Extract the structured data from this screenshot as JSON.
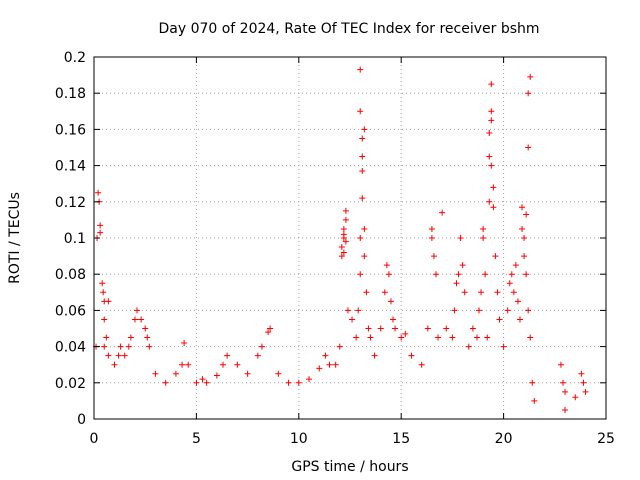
{
  "chart_data": {
    "type": "scatter",
    "title": "Day 070 of 2024, Rate Of TEC Index for receiver bshm",
    "xlabel": "GPS time / hours",
    "ylabel": "ROTI / TECUs",
    "xlim": [
      0,
      25
    ],
    "ylim": [
      0,
      0.2
    ],
    "x_ticks": [
      0,
      5,
      10,
      15,
      20,
      25
    ],
    "x_tick_labels": [
      "0",
      "5",
      "10",
      "15",
      "20",
      "25"
    ],
    "y_ticks": [
      0,
      0.02,
      0.04,
      0.06,
      0.08,
      0.1,
      0.12,
      0.14,
      0.16,
      0.18,
      0.2
    ],
    "y_tick_labels": [
      "0",
      "0.02",
      "0.04",
      "0.06",
      "0.08",
      "0.1",
      "0.12",
      "0.14",
      "0.16",
      "0.18",
      "0.2"
    ],
    "grid": true,
    "marker": "plus",
    "color": "#ff0000",
    "points": [
      [
        0.1,
        0.04
      ],
      [
        0.15,
        0.1
      ],
      [
        0.2,
        0.125
      ],
      [
        0.25,
        0.12
      ],
      [
        0.3,
        0.107
      ],
      [
        0.3,
        0.103
      ],
      [
        0.4,
        0.075
      ],
      [
        0.45,
        0.07
      ],
      [
        0.5,
        0.065
      ],
      [
        0.6,
        0.045
      ],
      [
        0.7,
        0.065
      ],
      [
        0.5,
        0.055
      ],
      [
        0.5,
        0.04
      ],
      [
        0.7,
        0.035
      ],
      [
        1.0,
        0.03
      ],
      [
        1.2,
        0.035
      ],
      [
        1.3,
        0.04
      ],
      [
        1.5,
        0.035
      ],
      [
        1.7,
        0.04
      ],
      [
        1.8,
        0.045
      ],
      [
        2.0,
        0.055
      ],
      [
        2.1,
        0.06
      ],
      [
        2.3,
        0.055
      ],
      [
        2.5,
        0.05
      ],
      [
        2.6,
        0.045
      ],
      [
        2.7,
        0.04
      ],
      [
        3.0,
        0.025
      ],
      [
        3.5,
        0.02
      ],
      [
        4.0,
        0.025
      ],
      [
        4.3,
        0.03
      ],
      [
        4.4,
        0.042
      ],
      [
        4.6,
        0.03
      ],
      [
        5.0,
        0.02
      ],
      [
        5.3,
        0.022
      ],
      [
        5.5,
        0.02
      ],
      [
        6.0,
        0.024
      ],
      [
        6.3,
        0.03
      ],
      [
        6.5,
        0.035
      ],
      [
        7.0,
        0.03
      ],
      [
        7.5,
        0.025
      ],
      [
        8.0,
        0.035
      ],
      [
        8.2,
        0.04
      ],
      [
        8.5,
        0.048
      ],
      [
        8.6,
        0.05
      ],
      [
        9.0,
        0.025
      ],
      [
        9.5,
        0.02
      ],
      [
        10.0,
        0.02
      ],
      [
        10.5,
        0.022
      ],
      [
        11.0,
        0.028
      ],
      [
        11.3,
        0.035
      ],
      [
        11.5,
        0.03
      ],
      [
        11.8,
        0.03
      ],
      [
        12.0,
        0.04
      ],
      [
        12.1,
        0.09
      ],
      [
        12.1,
        0.095
      ],
      [
        12.2,
        0.1
      ],
      [
        12.2,
        0.105
      ],
      [
        12.3,
        0.11
      ],
      [
        12.3,
        0.115
      ],
      [
        12.2,
        0.092
      ],
      [
        12.3,
        0.098
      ],
      [
        12.2,
        0.102
      ],
      [
        12.4,
        0.06
      ],
      [
        12.6,
        0.055
      ],
      [
        12.8,
        0.045
      ],
      [
        12.9,
        0.06
      ],
      [
        13.0,
        0.08
      ],
      [
        13.0,
        0.1
      ],
      [
        13.0,
        0.193
      ],
      [
        13.0,
        0.17
      ],
      [
        13.1,
        0.155
      ],
      [
        13.1,
        0.145
      ],
      [
        13.1,
        0.137
      ],
      [
        13.1,
        0.122
      ],
      [
        13.2,
        0.105
      ],
      [
        13.2,
        0.09
      ],
      [
        13.2,
        0.16
      ],
      [
        13.3,
        0.07
      ],
      [
        13.4,
        0.05
      ],
      [
        13.5,
        0.045
      ],
      [
        13.7,
        0.035
      ],
      [
        14.0,
        0.05
      ],
      [
        14.2,
        0.07
      ],
      [
        14.3,
        0.085
      ],
      [
        14.4,
        0.08
      ],
      [
        14.5,
        0.065
      ],
      [
        14.6,
        0.055
      ],
      [
        14.7,
        0.05
      ],
      [
        15.0,
        0.045
      ],
      [
        15.2,
        0.047
      ],
      [
        15.5,
        0.035
      ],
      [
        16.0,
        0.03
      ],
      [
        16.3,
        0.05
      ],
      [
        16.5,
        0.1
      ],
      [
        16.5,
        0.105
      ],
      [
        16.6,
        0.09
      ],
      [
        16.7,
        0.08
      ],
      [
        16.8,
        0.045
      ],
      [
        17.0,
        0.114
      ],
      [
        17.2,
        0.05
      ],
      [
        17.5,
        0.045
      ],
      [
        17.6,
        0.06
      ],
      [
        17.7,
        0.075
      ],
      [
        17.8,
        0.08
      ],
      [
        17.9,
        0.1
      ],
      [
        18.0,
        0.085
      ],
      [
        18.1,
        0.07
      ],
      [
        18.3,
        0.04
      ],
      [
        18.5,
        0.05
      ],
      [
        18.7,
        0.045
      ],
      [
        18.8,
        0.06
      ],
      [
        18.9,
        0.07
      ],
      [
        19.0,
        0.1
      ],
      [
        19.0,
        0.105
      ],
      [
        19.1,
        0.08
      ],
      [
        19.2,
        0.045
      ],
      [
        19.3,
        0.12
      ],
      [
        19.3,
        0.145
      ],
      [
        19.3,
        0.158
      ],
      [
        19.4,
        0.185
      ],
      [
        19.4,
        0.17
      ],
      [
        19.4,
        0.165
      ],
      [
        19.4,
        0.14
      ],
      [
        19.5,
        0.128
      ],
      [
        19.5,
        0.117
      ],
      [
        19.6,
        0.09
      ],
      [
        19.7,
        0.07
      ],
      [
        19.8,
        0.055
      ],
      [
        20.0,
        0.04
      ],
      [
        20.2,
        0.06
      ],
      [
        20.3,
        0.075
      ],
      [
        20.4,
        0.08
      ],
      [
        20.5,
        0.07
      ],
      [
        20.6,
        0.085
      ],
      [
        20.7,
        0.065
      ],
      [
        20.8,
        0.055
      ],
      [
        20.9,
        0.105
      ],
      [
        20.9,
        0.117
      ],
      [
        21.0,
        0.1
      ],
      [
        21.0,
        0.09
      ],
      [
        21.1,
        0.08
      ],
      [
        21.1,
        0.113
      ],
      [
        21.2,
        0.15
      ],
      [
        21.2,
        0.18
      ],
      [
        21.3,
        0.189
      ],
      [
        21.2,
        0.06
      ],
      [
        21.3,
        0.045
      ],
      [
        21.4,
        0.02
      ],
      [
        21.5,
        0.01
      ],
      [
        22.8,
        0.03
      ],
      [
        22.9,
        0.02
      ],
      [
        23.0,
        0.015
      ],
      [
        23.0,
        0.005
      ],
      [
        23.5,
        0.012
      ],
      [
        23.8,
        0.025
      ],
      [
        23.9,
        0.02
      ],
      [
        24.0,
        0.015
      ]
    ]
  }
}
